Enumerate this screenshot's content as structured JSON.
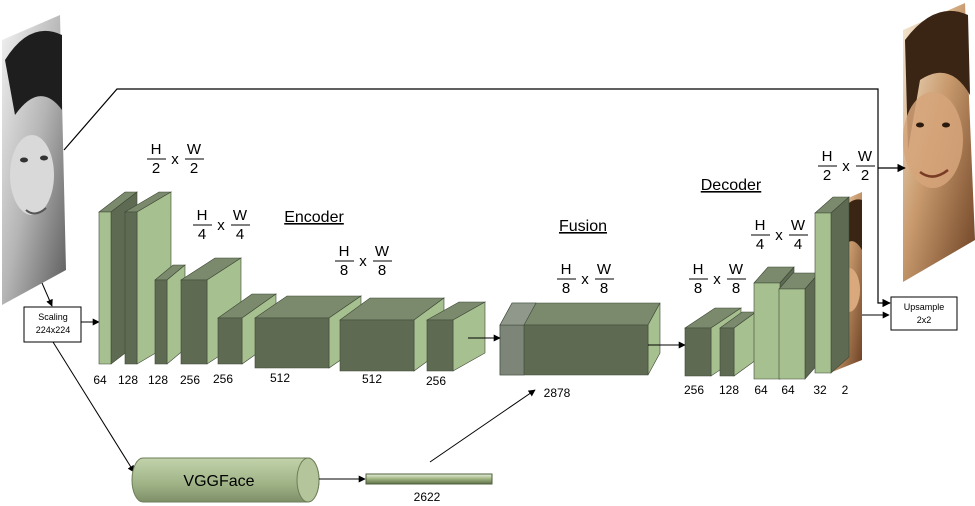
{
  "section_titles": {
    "encoder": "Encoder",
    "fusion": "Fusion",
    "decoder": "Decoder"
  },
  "boxes": {
    "scaling_line1": "Scaling",
    "scaling_line2": "224x224",
    "upsample_line1": "Upsample",
    "upsample_line2": "2x2",
    "vggface": "VGGFace"
  },
  "fractions": {
    "f1": {
      "num1": "H",
      "den1": "2",
      "op": "x",
      "num2": "W",
      "den2": "2"
    },
    "f2": {
      "num1": "H",
      "den1": "4",
      "op": "x",
      "num2": "W",
      "den2": "4"
    },
    "f3": {
      "num1": "H",
      "den1": "8",
      "op": "x",
      "num2": "W",
      "den2": "8"
    },
    "f4": {
      "num1": "H",
      "den1": "8",
      "op": "x",
      "num2": "W",
      "den2": "8"
    },
    "f5": {
      "num1": "H",
      "den1": "8",
      "op": "x",
      "num2": "W",
      "den2": "8"
    },
    "f6": {
      "num1": "H",
      "den1": "4",
      "op": "x",
      "num2": "W",
      "den2": "4"
    },
    "f7": {
      "num1": "H",
      "den1": "2",
      "op": "x",
      "num2": "W",
      "den2": "2"
    }
  },
  "encoder_channels": [
    "64",
    "128",
    "128",
    "256",
    "256",
    "512",
    "512",
    "256"
  ],
  "fusion_channels": "2878",
  "decoder_channels": [
    "256",
    "128",
    "64",
    "64",
    "32",
    "2"
  ],
  "vgg_vector": "2622",
  "colors": {
    "face_dark": "#5e6b52",
    "face_light": "#a7c08f",
    "top": "#7b8a6c",
    "outline": "#3c4636",
    "vgg": "#a3b58b"
  }
}
